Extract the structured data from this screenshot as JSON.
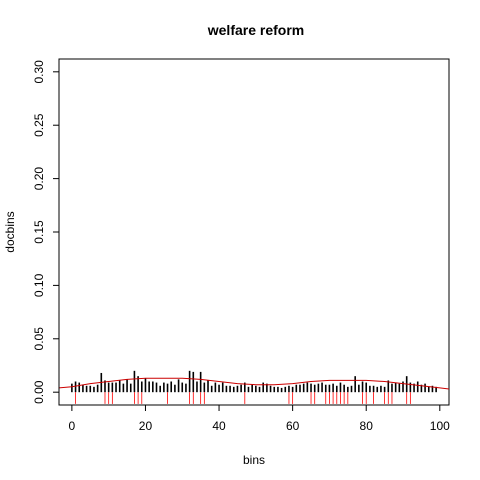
{
  "chart_data": {
    "type": "bar",
    "title": "welfare reform",
    "xlabel": "bins",
    "ylabel": "docbins",
    "xlim": [
      -3.5,
      102.5
    ],
    "ylim": [
      -0.012,
      0.312
    ],
    "x_ticks": [
      0,
      20,
      40,
      60,
      80,
      100
    ],
    "x_tick_labels": [
      "0",
      "20",
      "40",
      "60",
      "80",
      "100"
    ],
    "y_ticks": [
      0.0,
      0.05,
      0.1,
      0.15,
      0.2,
      0.25,
      0.3
    ],
    "y_tick_labels": [
      "0.00",
      "0.05",
      "0.10",
      "0.15",
      "0.20",
      "0.25",
      "0.30"
    ],
    "grid": false,
    "series": [
      {
        "kind": "histogram-lines",
        "color": "#000000",
        "x": [
          0,
          1,
          2,
          3,
          4,
          5,
          6,
          7,
          8,
          9,
          10,
          11,
          12,
          13,
          14,
          15,
          16,
          17,
          18,
          19,
          20,
          21,
          22,
          23,
          24,
          25,
          26,
          27,
          28,
          29,
          30,
          31,
          32,
          33,
          34,
          35,
          36,
          37,
          38,
          39,
          40,
          41,
          42,
          43,
          44,
          45,
          46,
          47,
          48,
          49,
          50,
          51,
          52,
          53,
          54,
          55,
          56,
          57,
          58,
          59,
          60,
          61,
          62,
          63,
          64,
          65,
          66,
          67,
          68,
          69,
          70,
          71,
          72,
          73,
          74,
          75,
          76,
          77,
          78,
          79,
          80,
          81,
          82,
          83,
          84,
          85,
          86,
          87,
          88,
          89,
          90,
          91,
          92,
          93,
          94,
          95,
          96,
          97,
          98,
          99
        ],
        "values": [
          0.008,
          0.01,
          0.009,
          0.007,
          0.006,
          0.006,
          0.005,
          0.007,
          0.018,
          0.011,
          0.009,
          0.009,
          0.009,
          0.011,
          0.008,
          0.012,
          0.008,
          0.02,
          0.015,
          0.01,
          0.013,
          0.01,
          0.01,
          0.009,
          0.006,
          0.009,
          0.008,
          0.01,
          0.007,
          0.012,
          0.009,
          0.008,
          0.02,
          0.019,
          0.01,
          0.019,
          0.009,
          0.011,
          0.006,
          0.009,
          0.007,
          0.009,
          0.006,
          0.006,
          0.005,
          0.006,
          0.007,
          0.009,
          0.005,
          0.007,
          0.006,
          0.005,
          0.009,
          0.008,
          0.006,
          0.005,
          0.005,
          0.004,
          0.005,
          0.006,
          0.005,
          0.007,
          0.007,
          0.008,
          0.009,
          0.008,
          0.007,
          0.008,
          0.009,
          0.007,
          0.007,
          0.008,
          0.006,
          0.009,
          0.007,
          0.005,
          0.006,
          0.015,
          0.007,
          0.01,
          0.009,
          0.006,
          0.006,
          0.005,
          0.006,
          0.005,
          0.011,
          0.008,
          0.009,
          0.008,
          0.01,
          0.015,
          0.009,
          0.008,
          0.01,
          0.007,
          0.008,
          0.005,
          0.006,
          0.005
        ]
      },
      {
        "kind": "rug",
        "color": "#ff0000",
        "x": [
          1,
          9,
          10,
          11,
          17,
          18,
          19,
          26,
          32,
          33,
          35,
          36,
          47,
          59,
          60,
          65,
          66,
          69,
          70,
          71,
          72,
          73,
          74,
          75,
          79,
          80,
          82,
          85,
          86,
          87,
          91,
          92
        ]
      },
      {
        "kind": "smooth-line",
        "color": "#cc0000",
        "x": [
          -3.5,
          0,
          5,
          10,
          15,
          20,
          25,
          30,
          35,
          40,
          45,
          50,
          55,
          60,
          65,
          70,
          75,
          80,
          85,
          90,
          95,
          100,
          102.5
        ],
        "values": [
          0.004,
          0.005,
          0.008,
          0.01,
          0.012,
          0.013,
          0.013,
          0.013,
          0.012,
          0.01,
          0.008,
          0.007,
          0.007,
          0.008,
          0.01,
          0.011,
          0.011,
          0.011,
          0.01,
          0.008,
          0.006,
          0.004,
          0.003
        ]
      }
    ]
  }
}
